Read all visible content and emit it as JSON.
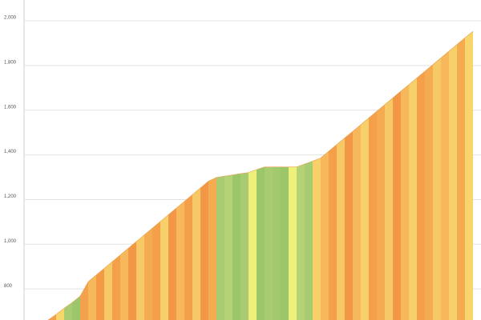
{
  "chart_data": {
    "type": "area",
    "values": [
      661,
      686,
      714,
      739,
      768,
      832,
      862,
      892,
      922,
      952,
      982,
      1012,
      1042,
      1072,
      1102,
      1132,
      1162,
      1192,
      1222,
      1252,
      1282,
      1299,
      1305,
      1310,
      1316,
      1321,
      1334,
      1346,
      1346,
      1346,
      1346,
      1346,
      1359,
      1372,
      1386,
      1416,
      1446,
      1476,
      1505,
      1535,
      1565,
      1595,
      1625,
      1655,
      1685,
      1714,
      1744,
      1774,
      1804,
      1834,
      1864,
      1894,
      1924,
      1953
    ],
    "colors": [
      "#f4a048",
      "#f7d76a",
      "#a9cc72",
      "#9cc66a",
      "#f2a24c",
      "#f6b85a",
      "#f49a45",
      "#f7c866",
      "#f4a048",
      "#f6b85a",
      "#f29745",
      "#f7c866",
      "#f5ab50",
      "#f4a048",
      "#f7d06a",
      "#f29745",
      "#f6b85a",
      "#f4a048",
      "#f7c866",
      "#f29745",
      "#f5ab50",
      "#a9cc72",
      "#b6d277",
      "#9cc66a",
      "#a9cc72",
      "#eef07a",
      "#9cc66a",
      "#a9cc72",
      "#a3c96e",
      "#9cc66a",
      "#eef07a",
      "#b6d277",
      "#a9cc72",
      "#f7d06a",
      "#f6b85a",
      "#f4a048",
      "#f7c866",
      "#f29745",
      "#f6b85a",
      "#f7d06a",
      "#f4a048",
      "#f5ab50",
      "#f7c866",
      "#f29745",
      "#f6b85a",
      "#f7d06a",
      "#f4a048",
      "#f5ab50",
      "#f7c866",
      "#f6b85a",
      "#f7d06a",
      "#f5ab50",
      "#f8d46c"
    ],
    "ylim": [
      661,
      2093
    ],
    "yticks": [
      {
        "value": 800,
        "label": "800"
      },
      {
        "value": 1000,
        "label": "1,000"
      },
      {
        "value": 1200,
        "label": "1,200"
      },
      {
        "value": 1400,
        "label": "1,400"
      },
      {
        "value": 1600,
        "label": "1,600"
      },
      {
        "value": 1800,
        "label": "1,800"
      },
      {
        "value": 2000,
        "label": "2,000"
      }
    ],
    "grid": true
  }
}
